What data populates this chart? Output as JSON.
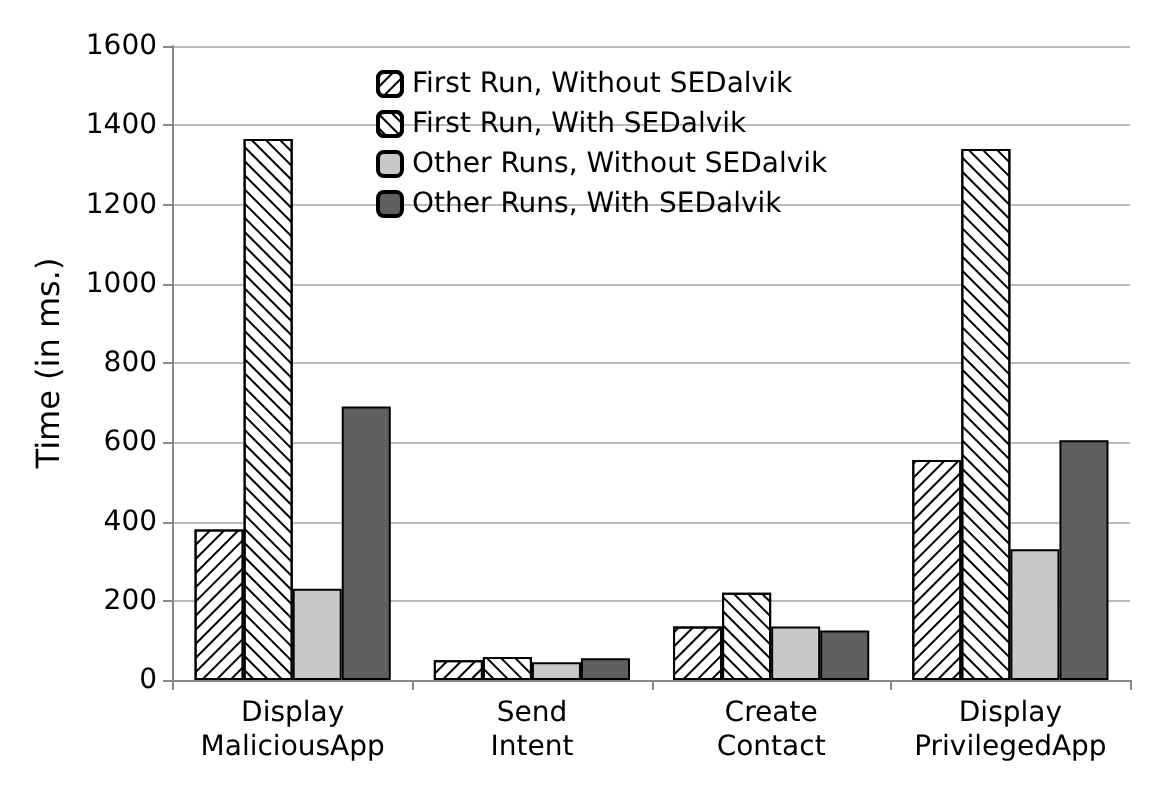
{
  "chart_data": {
    "type": "bar",
    "ylabel": "Time (in ms.)",
    "categories": [
      "Display\nMaliciousApp",
      "Send\nIntent",
      "Create\nContact",
      "Display\nPrivilegedApp"
    ],
    "series": [
      {
        "name": "First Run, Without SEDalvik",
        "color": "#ffffff",
        "values": [
          380,
          50,
          135,
          555
        ]
      },
      {
        "name": "First Run, With SEDalvik",
        "color": "#ffffff",
        "values": [
          1365,
          58,
          220,
          1340
        ]
      },
      {
        "name": "Other Runs, Without SEDalvik",
        "color": "#c8c8c8",
        "values": [
          230,
          45,
          135,
          330
        ]
      },
      {
        "name": "Other Runs, With SEDalvik",
        "color": "#606060",
        "values": [
          690,
          55,
          125,
          605
        ]
      }
    ],
    "ylim": [
      0,
      1600
    ],
    "yticks": [
      0,
      200,
      400,
      600,
      800,
      1000,
      1200,
      1400,
      1600
    ],
    "grid": "y",
    "legend": "top"
  }
}
